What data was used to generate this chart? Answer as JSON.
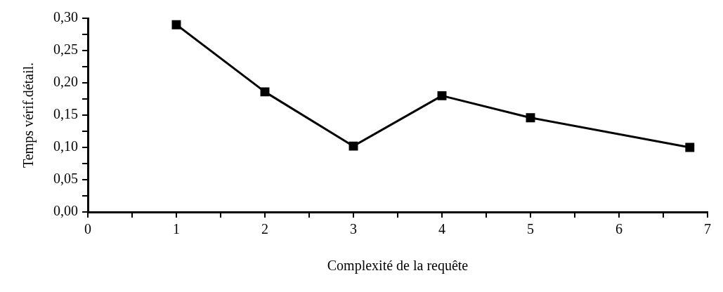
{
  "chart_data": {
    "type": "line",
    "xlabel": "Complexité de la requête",
    "ylabel": "Temps vérif.détail.",
    "x": [
      1,
      2,
      3,
      4,
      5,
      6.8
    ],
    "series": [
      {
        "color": "#000000",
        "values": [
          0.29,
          0.186,
          0.102,
          0.18,
          0.146,
          0.1
        ]
      }
    ],
    "xlim": [
      0,
      7
    ],
    "xticks": [
      0,
      {
        "value": 0.5,
        "label": null
      },
      1,
      {
        "value": 1.5,
        "label": null
      },
      2,
      {
        "value": 2.5,
        "label": null
      },
      3,
      {
        "value": 3.5,
        "label": null
      },
      4,
      {
        "value": 4.5,
        "label": null
      },
      5,
      {
        "value": 5.5,
        "label": null
      },
      6,
      {
        "value": 6.5,
        "label": null
      },
      7
    ],
    "ylim": [
      0,
      0.3
    ],
    "yticks": [
      {
        "value": 0,
        "label": "0,00"
      },
      {
        "value": 0.025,
        "label": null
      },
      {
        "value": 0.05,
        "label": "0,05"
      },
      {
        "value": 0.075,
        "label": null
      },
      {
        "value": 0.1,
        "label": "0,10"
      },
      {
        "value": 0.125,
        "label": null
      },
      {
        "value": 0.15,
        "label": "0,15"
      },
      {
        "value": 0.175,
        "label": null
      },
      {
        "value": 0.2,
        "label": "0,20"
      },
      {
        "value": 0.225,
        "label": null
      },
      {
        "value": 0.25,
        "label": "0,25"
      },
      {
        "value": 0.275,
        "label": null
      },
      {
        "value": 0.3,
        "label": "0,30"
      }
    ],
    "grid": false,
    "legend": false,
    "marker": "square",
    "line_style": "solid"
  }
}
